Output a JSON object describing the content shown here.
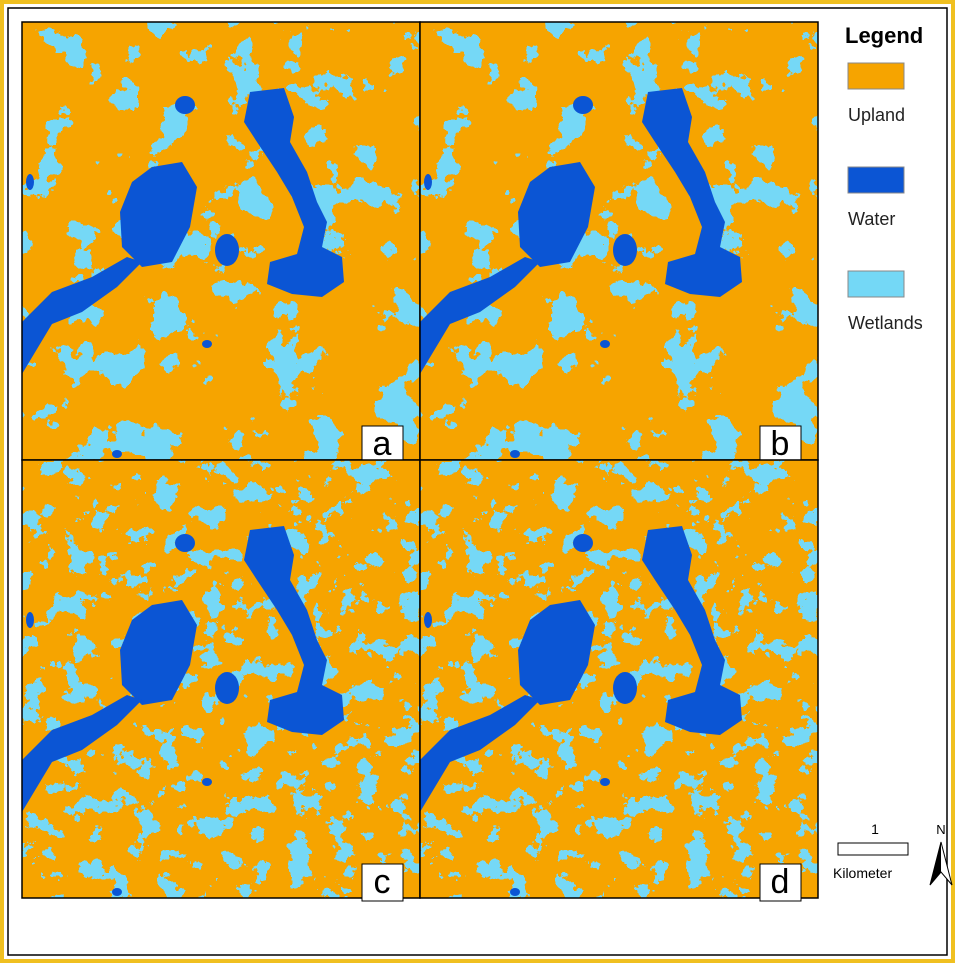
{
  "legend": {
    "title": "Legend",
    "items": [
      {
        "label": "Upland",
        "color": "#f6a400"
      },
      {
        "label": "Water",
        "color": "#0b55d4"
      },
      {
        "label": "Wetlands",
        "color": "#74d8f6"
      }
    ]
  },
  "panels": [
    {
      "label": "a"
    },
    {
      "label": "b"
    },
    {
      "label": "c"
    },
    {
      "label": "d"
    }
  ],
  "scale_bar": {
    "value": "1",
    "unit": "Kilometer"
  },
  "north_arrow": "N"
}
